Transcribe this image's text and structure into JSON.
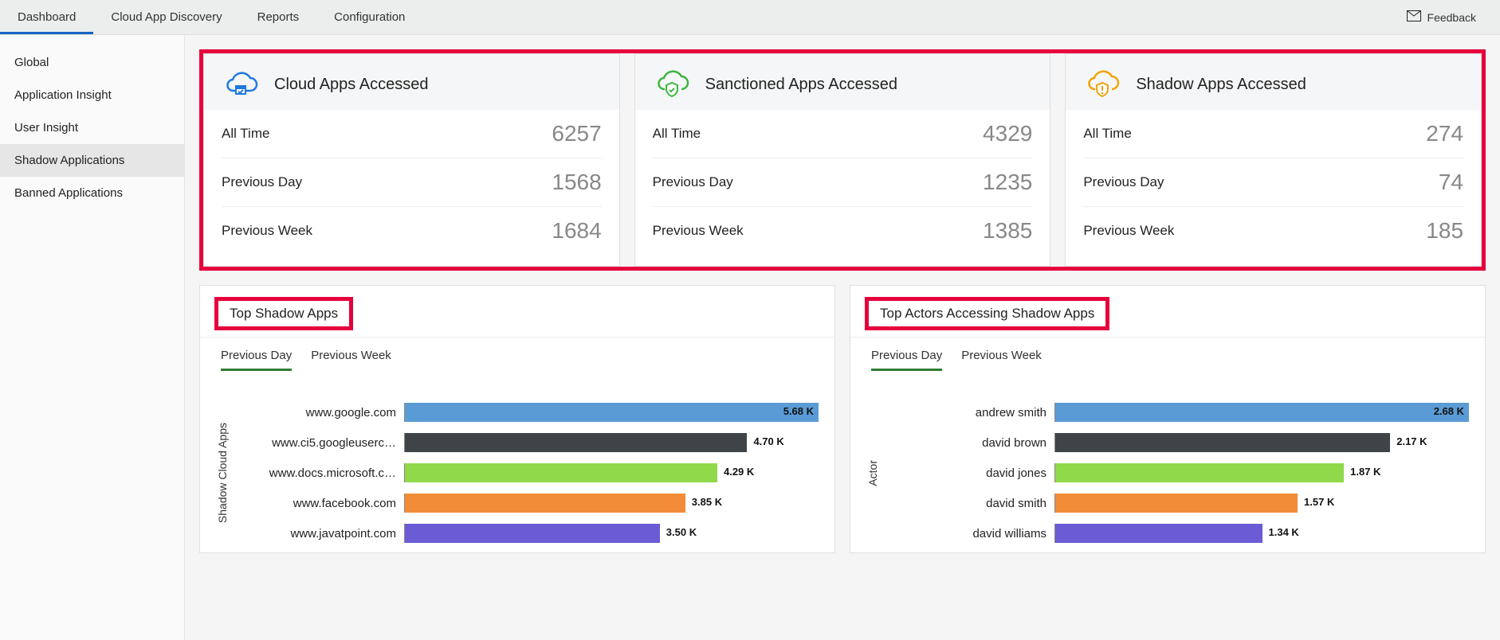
{
  "topnav": {
    "tabs": [
      "Dashboard",
      "Cloud App Discovery",
      "Reports",
      "Configuration"
    ],
    "active": 0,
    "feedback": "Feedback"
  },
  "sidebar": {
    "items": [
      "Global",
      "Application Insight",
      "User Insight",
      "Shadow Applications",
      "Banned Applications"
    ],
    "active": 3
  },
  "highlight_color": "#e6003c",
  "cards": [
    {
      "title": "Cloud Apps Accessed",
      "icon_color": "#1f7ae0",
      "icon": "cloud",
      "rows": [
        {
          "label": "All Time",
          "value": "6257"
        },
        {
          "label": "Previous Day",
          "value": "1568"
        },
        {
          "label": "Previous Week",
          "value": "1684"
        }
      ]
    },
    {
      "title": "Sanctioned Apps Accessed",
      "icon_color": "#3fb63f",
      "icon": "cloud-shield",
      "rows": [
        {
          "label": "All Time",
          "value": "4329"
        },
        {
          "label": "Previous Day",
          "value": "1235"
        },
        {
          "label": "Previous Week",
          "value": "1385"
        }
      ]
    },
    {
      "title": "Shadow Apps Accessed",
      "icon_color": "#f0a30a",
      "icon": "cloud-warn",
      "rows": [
        {
          "label": "All Time",
          "value": "274"
        },
        {
          "label": "Previous Day",
          "value": "74"
        },
        {
          "label": "Previous Week",
          "value": "185"
        }
      ]
    }
  ],
  "panels": [
    {
      "title": "Top Shadow Apps",
      "subtabs": [
        "Previous Day",
        "Previous Week"
      ],
      "subtab_active": 0,
      "y_axis": "Shadow Cloud Apps",
      "chart": {
        "type": "bar-horizontal",
        "max": 5.68,
        "bars": [
          {
            "label": "www.google.com",
            "value": 5.68,
            "text": "5.68 K",
            "color": "#5b9bd5"
          },
          {
            "label": "www.ci5.googleuserc…",
            "value": 4.7,
            "text": "4.70 K",
            "color": "#3f4447"
          },
          {
            "label": "www.docs.microsoft.c…",
            "value": 4.29,
            "text": "4.29 K",
            "color": "#8fd94a"
          },
          {
            "label": "www.facebook.com",
            "value": 3.85,
            "text": "3.85 K",
            "color": "#f28c38"
          },
          {
            "label": "www.javatpoint.com",
            "value": 3.5,
            "text": "3.50 K",
            "color": "#6b5bd5"
          }
        ]
      }
    },
    {
      "title": "Top Actors Accessing Shadow Apps",
      "subtabs": [
        "Previous Day",
        "Previous Week"
      ],
      "subtab_active": 0,
      "y_axis": "Actor",
      "chart": {
        "type": "bar-horizontal",
        "max": 2.68,
        "bars": [
          {
            "label": "andrew smith",
            "value": 2.68,
            "text": "2.68 K",
            "color": "#5b9bd5"
          },
          {
            "label": "david brown",
            "value": 2.17,
            "text": "2.17 K",
            "color": "#3f4447"
          },
          {
            "label": "david jones",
            "value": 1.87,
            "text": "1.87 K",
            "color": "#8fd94a"
          },
          {
            "label": "david smith",
            "value": 1.57,
            "text": "1.57 K",
            "color": "#f28c38"
          },
          {
            "label": "david williams",
            "value": 1.34,
            "text": "1.34 K",
            "color": "#6b5bd5"
          }
        ]
      }
    }
  ]
}
